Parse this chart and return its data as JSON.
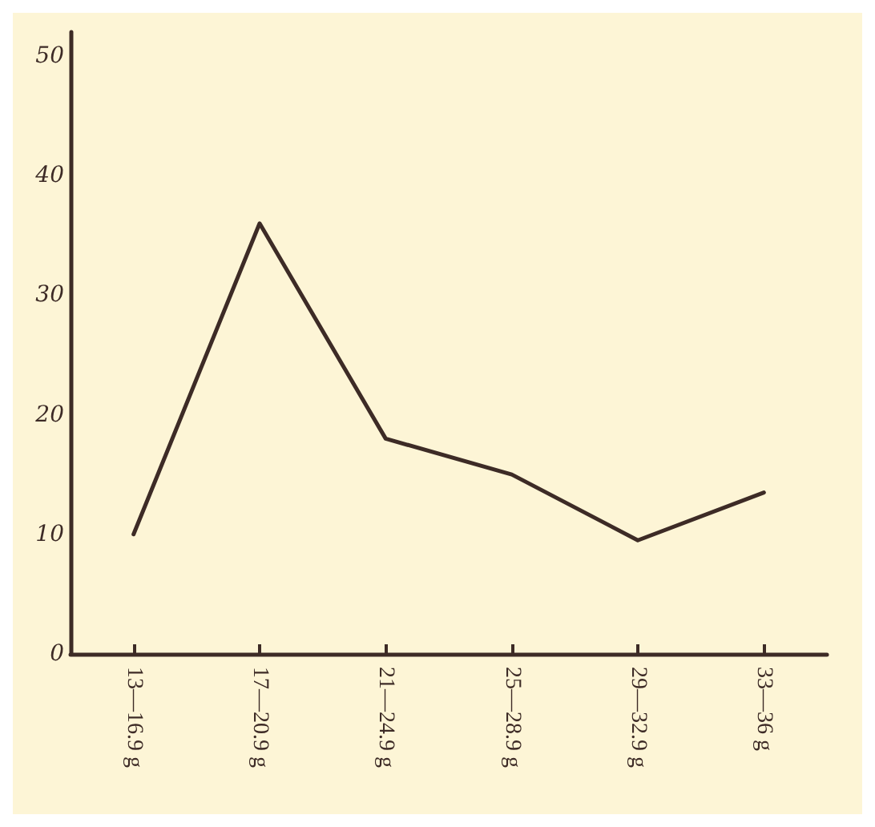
{
  "chart_data": {
    "type": "line",
    "categories": [
      "13—16.9 g",
      "17—20.9 g",
      "21—24.9 g",
      "25—28.9 g",
      "29—32.9 g",
      "33—36 g"
    ],
    "series": [
      {
        "color": "#3d2b26",
        "values": [
          10,
          36,
          18,
          15,
          9.5,
          13.5
        ]
      }
    ],
    "ylim": [
      0,
      52
    ],
    "yticks": [
      0,
      10,
      20,
      30,
      40,
      50
    ],
    "grid": false,
    "marker": "none",
    "line_style": "solid"
  }
}
